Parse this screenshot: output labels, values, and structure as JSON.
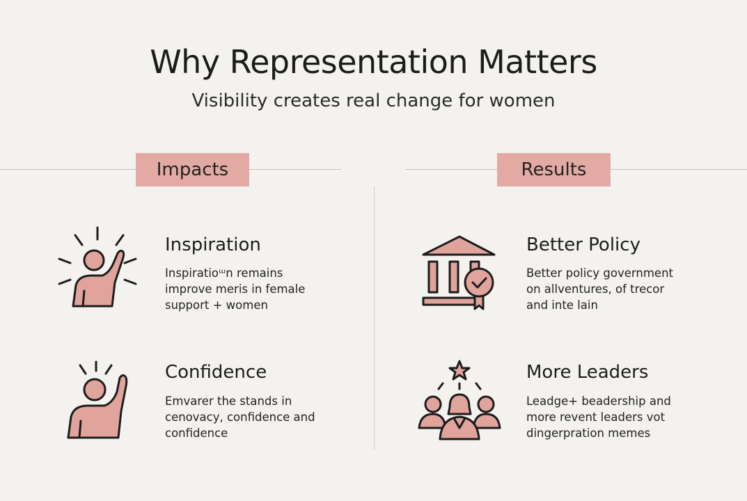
{
  "header": {
    "title": "Why Representation Matters",
    "subtitle": "Visibility creates real change for women"
  },
  "colors": {
    "background": "#f4f2ef",
    "accent": "#e3aaa3",
    "icon_fill": "#e0a49c"
  },
  "sections": [
    {
      "label": "Impacts",
      "items": [
        {
          "icon": "raised-hand-person-icon",
          "title": "Inspiration",
          "lines": [
            "Inspiratioᵚn remains",
            "improve meris in female",
            "support + women"
          ]
        },
        {
          "icon": "raised-hand-person-icon",
          "title": "Confidence",
          "lines": [
            "Emvarer the stands in",
            "cenovacy, confidence and",
            "confidence"
          ]
        }
      ]
    },
    {
      "label": "Results",
      "items": [
        {
          "icon": "government-building-badge-icon",
          "title": "Better Policy",
          "lines": [
            "Better policy government",
            "on allventures, of trecor",
            "and inte lain"
          ]
        },
        {
          "icon": "leaders-group-star-icon",
          "title": "More Leaders",
          "lines": [
            "Leadge+ beadership and",
            "more revent leaders vot",
            "dingerpration memes"
          ]
        }
      ]
    }
  ]
}
